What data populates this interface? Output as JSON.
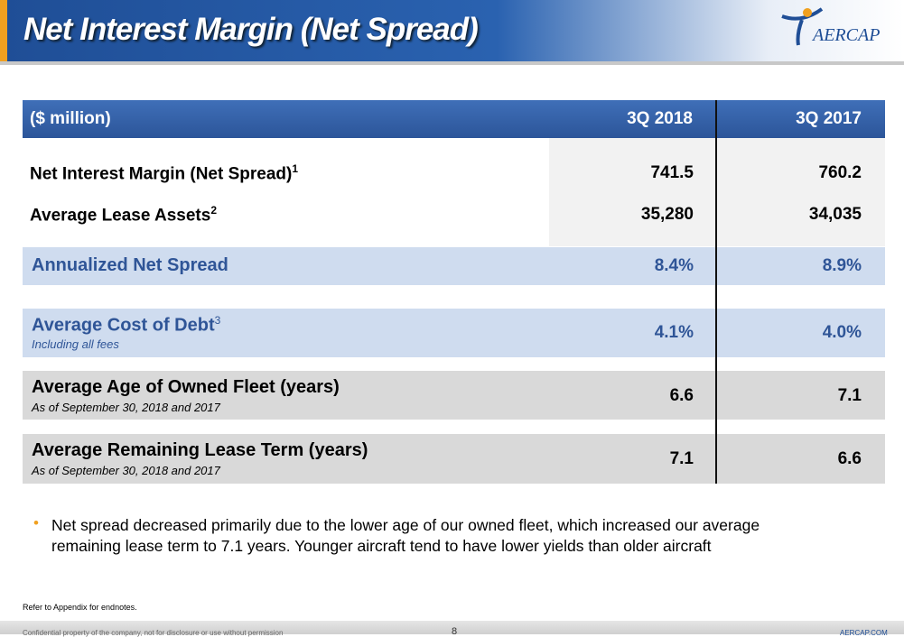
{
  "header": {
    "title": "Net Interest Margin (Net Spread)",
    "logo": "AERCAP"
  },
  "table": {
    "columns": [
      "($ million)",
      "3Q 2018",
      "3Q 2017"
    ],
    "rows": [
      {
        "label": "Net Interest Margin (Net Spread)",
        "note": "1",
        "values": [
          "741.5",
          "760.2"
        ]
      },
      {
        "label": "Average Lease Assets",
        "note": "2",
        "values": [
          "35,280",
          "34,035"
        ]
      },
      {
        "label": "Annualized Net Spread",
        "values": [
          "8.4%",
          "8.9%"
        ]
      },
      {
        "label": "Average Cost of Debt",
        "note": "3",
        "sublabel": "Including all fees",
        "values": [
          "4.1%",
          "4.0%"
        ]
      },
      {
        "label": "Average Age of Owned Fleet (years)",
        "sublabel": "As of September 30, 2018 and 2017",
        "values": [
          "6.6",
          "7.1"
        ]
      },
      {
        "label": "Average Remaining Lease Term (years)",
        "sublabel": "As of September 30, 2018 and 2017",
        "values": [
          "7.1",
          "6.6"
        ]
      }
    ]
  },
  "bullets": [
    "Net spread decreased primarily due to the lower age of our owned fleet, which increased our average remaining lease term to 7.1 years. Younger aircraft tend to have lower yields than older aircraft"
  ],
  "footnote": "Refer to Appendix for endnotes.",
  "footer": {
    "confidential": "Confidential property of the company, not for disclosure or use without permission",
    "page": "8",
    "site": "AERCAP.COM"
  }
}
